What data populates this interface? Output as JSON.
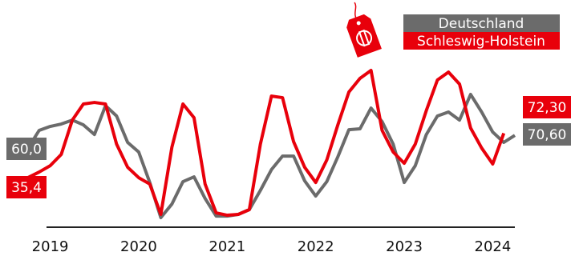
{
  "chart_data": {
    "type": "line",
    "x": [
      2018.75,
      2018.875,
      2019.0,
      2019.125,
      2019.25,
      2019.375,
      2019.5,
      2019.625,
      2019.75,
      2019.875,
      2020.0,
      2020.125,
      2020.25,
      2020.375,
      2020.5,
      2020.625,
      2020.75,
      2020.875,
      2021.0,
      2021.125,
      2021.25,
      2021.375,
      2021.5,
      2021.625,
      2021.75,
      2021.875,
      2022.0,
      2022.125,
      2022.25,
      2022.375,
      2022.5,
      2022.625,
      2022.75,
      2022.875,
      2023.0,
      2023.125,
      2023.25,
      2023.375,
      2023.5,
      2023.625,
      2023.75,
      2023.875,
      2024.0,
      2024.125,
      2024.25
    ],
    "series": [
      {
        "name": "Deutschland",
        "color": "#6b6b6b",
        "values": [
          60.0,
          74.7,
          78,
          80,
          83.3,
          79.3,
          71.3,
          95.3,
          86.7,
          64.7,
          56.7,
          31.3,
          2,
          13.3,
          32,
          36,
          18,
          3.3,
          3.3,
          4.7,
          8.7,
          24.7,
          42,
          53.3,
          53.3,
          32.7,
          20,
          32,
          52.7,
          75.3,
          76,
          93.3,
          82,
          63.3,
          31.3,
          45.3,
          71.3,
          86.7,
          90,
          83.3,
          104.7,
          90,
          73.3,
          64.7,
          70.6
        ],
        "value_labels": [
          "60,0",
          null,
          null,
          null,
          null,
          null,
          null,
          null,
          null,
          null,
          null,
          null,
          null,
          null,
          null,
          null,
          null,
          null,
          null,
          null,
          null,
          null,
          null,
          null,
          null,
          null,
          null,
          null,
          null,
          null,
          null,
          null,
          null,
          null,
          null,
          null,
          null,
          null,
          null,
          null,
          null,
          null,
          null,
          null,
          "70,60"
        ]
      },
      {
        "name": "Schleswig-Holstein",
        "color": "#e8000b",
        "values": [
          35.4,
          40,
          45.3,
          54.7,
          83.3,
          96.7,
          98,
          96.7,
          63.3,
          44,
          35.3,
          30,
          4.7,
          60.7,
          96.7,
          85.3,
          30,
          6,
          4,
          4.7,
          8.7,
          63.3,
          103.3,
          102,
          65.3,
          44,
          31.3,
          50,
          79.3,
          106.7,
          118,
          124.7,
          74.7,
          56.7,
          47.3,
          63.3,
          91.3,
          116.7,
          123.3,
          113.3,
          76.7,
          60,
          46.7,
          72.3,
          null
        ],
        "value_labels": [
          "35,4",
          null,
          null,
          null,
          null,
          null,
          null,
          null,
          null,
          null,
          null,
          null,
          null,
          null,
          null,
          null,
          null,
          null,
          null,
          null,
          null,
          null,
          null,
          null,
          null,
          null,
          null,
          null,
          null,
          null,
          null,
          null,
          null,
          null,
          null,
          null,
          null,
          null,
          null,
          null,
          null,
          null,
          null,
          "72,30",
          null
        ]
      }
    ],
    "xlim": [
      2018.75,
      2024.25
    ],
    "xticks": [
      2019,
      2020,
      2021,
      2022,
      2023,
      2024
    ],
    "ylim": [
      -5.3,
      126.7
    ]
  }
}
